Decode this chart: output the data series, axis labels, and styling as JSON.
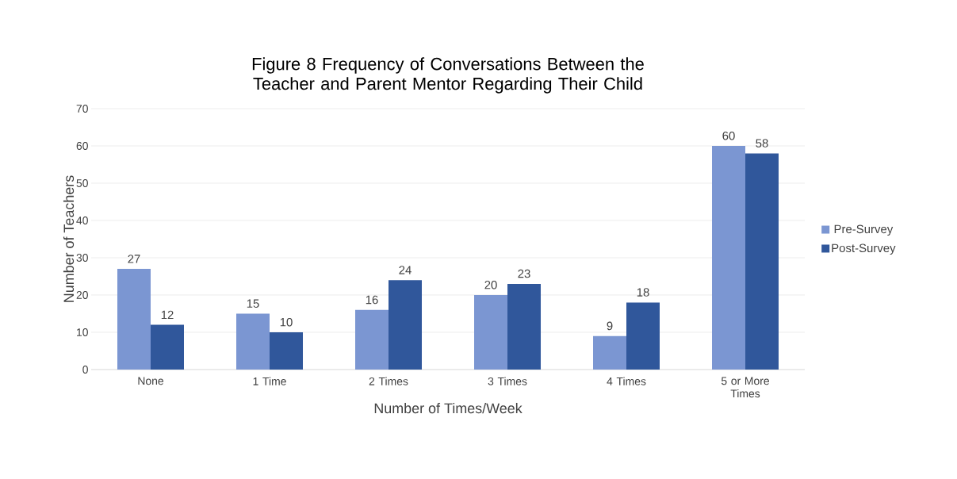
{
  "chart_data": {
    "type": "bar",
    "title": "Figure 8 Frequency of Conversations Between the Teacher and Parent Mentor Regarding Their Child",
    "xlabel": "Number of Times/Week",
    "ylabel": "Number of Teachers",
    "categories": [
      "None",
      "1 Time",
      "2 Times",
      "3 Times",
      "4 Times",
      "5 or More Times"
    ],
    "series": [
      {
        "name": "Pre-Survey",
        "color": "#7b96d2",
        "values": [
          27,
          15,
          16,
          20,
          9,
          60
        ]
      },
      {
        "name": "Post-Survey",
        "color": "#30579b",
        "values": [
          12,
          10,
          24,
          23,
          18,
          58
        ]
      }
    ],
    "ylim": [
      0,
      70
    ],
    "yticks": [
      0,
      10,
      20,
      30,
      40,
      50,
      60,
      70
    ],
    "grid": "y",
    "legend": "right",
    "data_labels": true
  }
}
